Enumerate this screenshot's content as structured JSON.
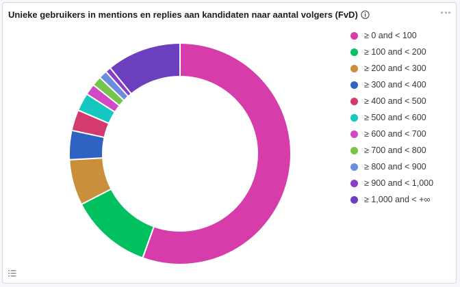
{
  "panel": {
    "title": "Unieke gebruikers in mentions en replies aan kandidaten naar aantal volgers (FvD)"
  },
  "icons": {
    "info": "info-icon",
    "options": "options-dots-icon",
    "legend_toggle": "legend-list-icon"
  },
  "chart_data": {
    "type": "pie",
    "donut": true,
    "categories": [
      "≥ 0 and < 100",
      "≥ 100 and < 200",
      "≥ 200 and < 300",
      "≥ 300 and < 400",
      "≥ 400 and < 500",
      "≥ 500 and < 600",
      "≥ 600 and < 700",
      "≥ 700 and < 800",
      "≥ 800 and < 900",
      "≥ 900 and < 1,000",
      "≥ 1,000 and < +∞"
    ],
    "values": [
      54.7,
      11.8,
      6.6,
      4.2,
      3.0,
      2.6,
      1.6,
      1.4,
      1.2,
      0.8,
      10.7
    ],
    "colors": [
      "#d63dab",
      "#00c05f",
      "#ca8f3c",
      "#2e63c1",
      "#d43a6f",
      "#14c7c0",
      "#d249c6",
      "#76c44b",
      "#6c8cde",
      "#8a3bc8",
      "#6c3fbf"
    ],
    "legend_position": "right"
  }
}
